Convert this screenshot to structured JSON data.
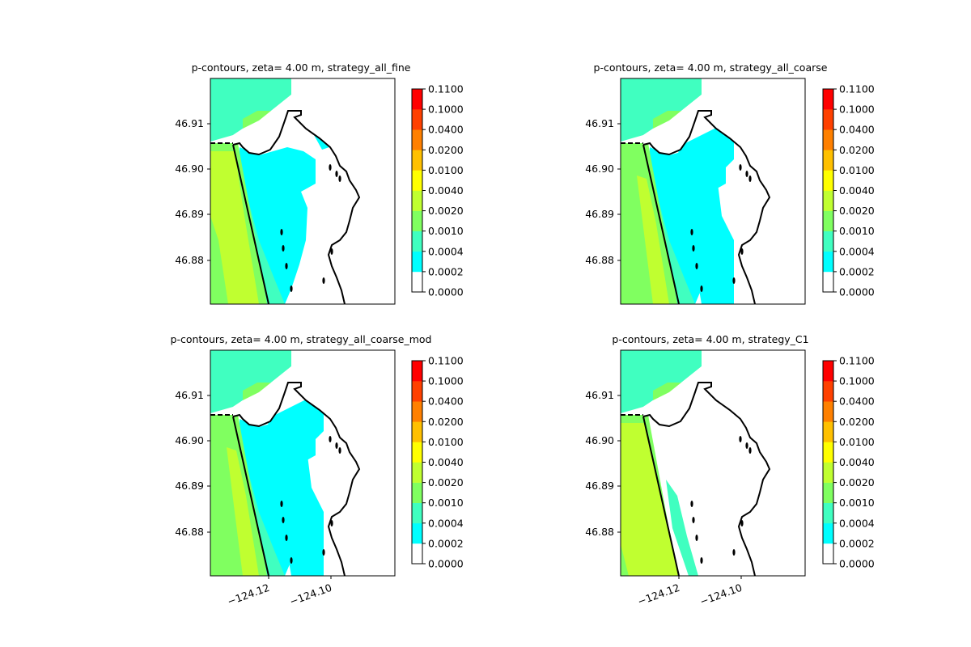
{
  "colors": {
    "white": "#ffffff",
    "cyan": "#00ffff",
    "aquamarine": "#40ffc0",
    "light_green": "#80ff60",
    "yellow_green": "#c0ff30",
    "yellow": "#ffff00",
    "gold": "#ffc000",
    "orange": "#ff8000",
    "dark_orange": "#ff4000",
    "red": "#ff0000",
    "coast": "#000000"
  },
  "colorbar": {
    "levels": [
      "0.0000",
      "0.0002",
      "0.0004",
      "0.0010",
      "0.0020",
      "0.0040",
      "0.0100",
      "0.0200",
      "0.0400",
      "0.1000",
      "0.1100"
    ],
    "band_colors": [
      "#ffffff",
      "#00ffff",
      "#40ffc0",
      "#80ff60",
      "#c0ff30",
      "#ffff00",
      "#ffc000",
      "#ff8000",
      "#ff4000",
      "#ff0000"
    ]
  },
  "axes": {
    "y_ticks": [
      "46.91",
      "46.90",
      "46.89",
      "46.88"
    ],
    "x_ticks": [
      "−124.12",
      "−124.10"
    ]
  },
  "panels": [
    {
      "title": "p-contours, zeta= 4.00 m, strategy_all_fine",
      "variant": "fine"
    },
    {
      "title": "p-contours, zeta= 4.00 m, strategy_all_coarse",
      "variant": "coarse"
    },
    {
      "title": "p-contours, zeta= 4.00 m, strategy_all_coarse_mod",
      "variant": "coarse_mod"
    },
    {
      "title": "p-contours, zeta= 4.00 m, strategy_C1",
      "variant": "c1"
    }
  ]
}
